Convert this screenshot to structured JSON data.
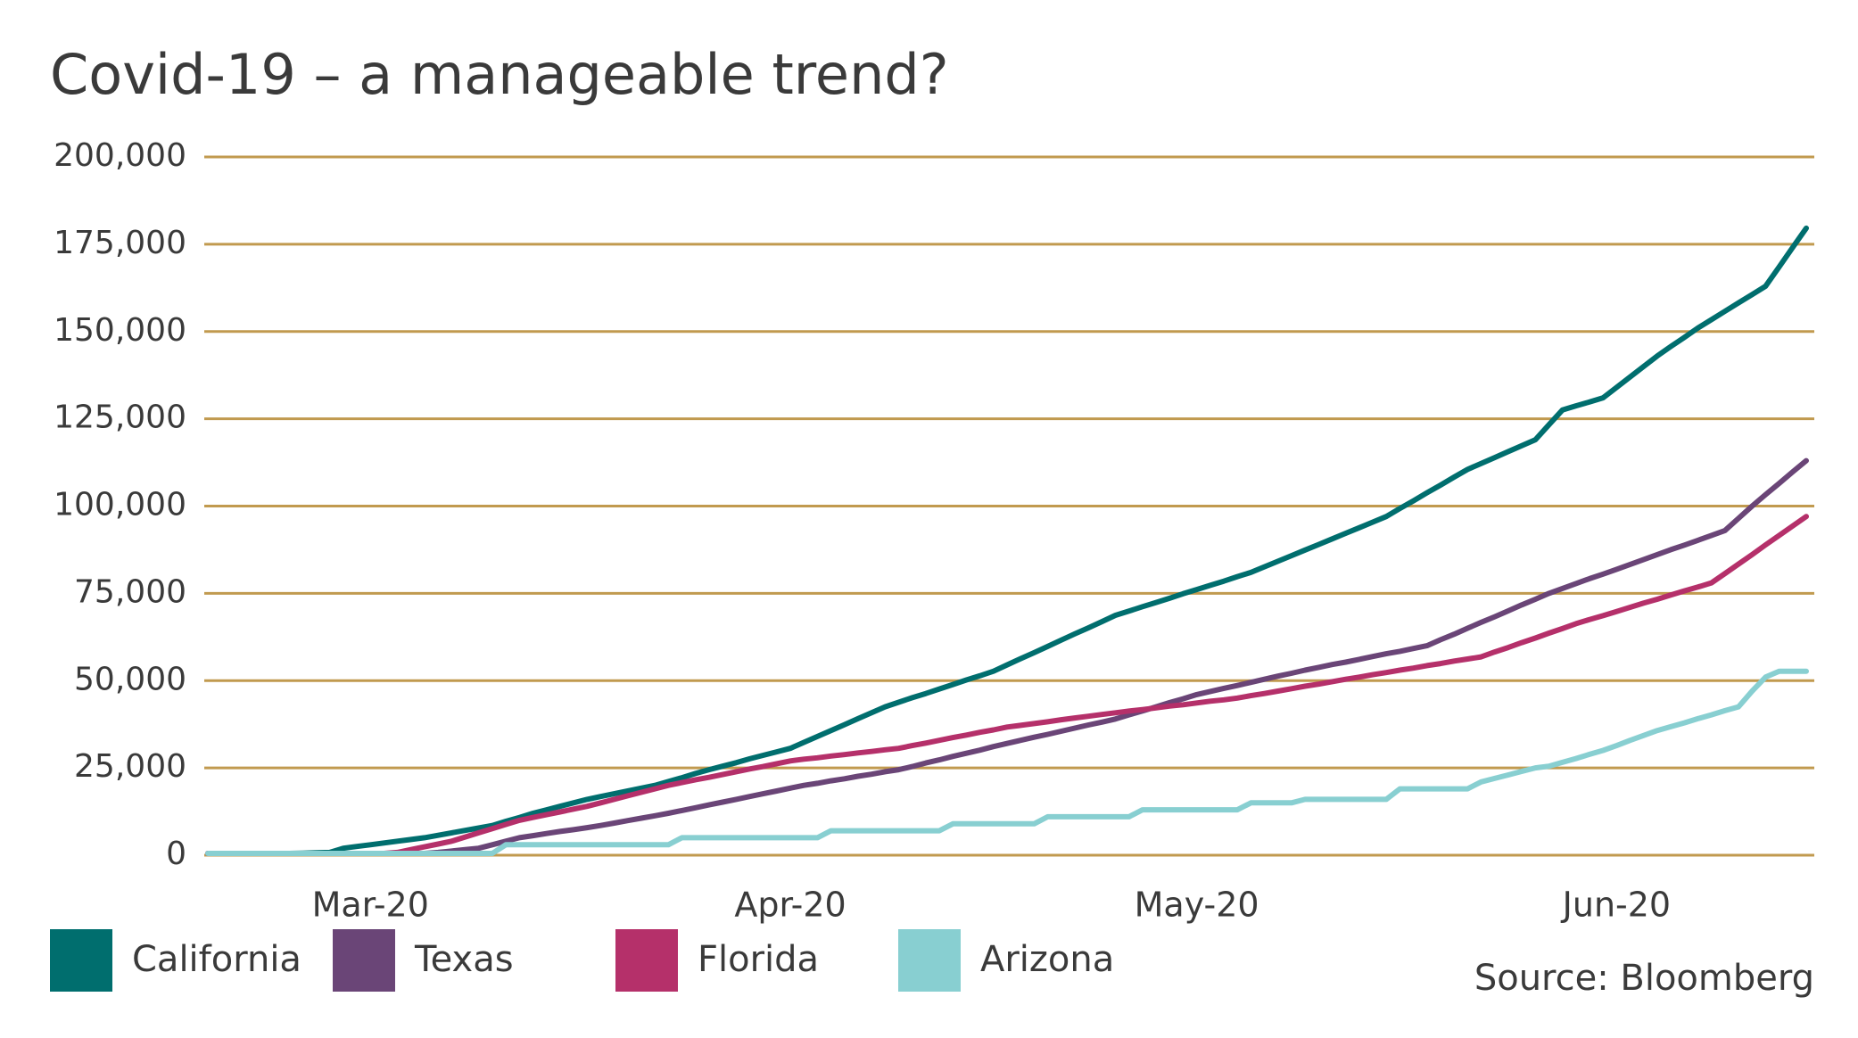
{
  "chart_data": {
    "type": "line",
    "title": "Covid-19 – a manageable trend?",
    "source": "Source: Bloomberg",
    "grid": true,
    "grid_color": "#c19a4f",
    "legend": "bottom-left",
    "ylim": [
      0,
      200000
    ],
    "yticks": [
      0,
      {
        "value": 25000,
        "label": "25,000"
      },
      {
        "value": 50000,
        "label": "50,000"
      },
      {
        "value": 75000,
        "label": "75,000"
      },
      {
        "value": 100000,
        "label": "100,000"
      },
      {
        "value": 125000,
        "label": "125,000"
      },
      {
        "value": 150000,
        "label": "150,000"
      },
      {
        "value": 175000,
        "label": "175,000"
      },
      {
        "value": 200000,
        "label": "200,000"
      }
    ],
    "categories": [
      null,
      null,
      null,
      null,
      null,
      null,
      null,
      null,
      null,
      null,
      null,
      null,
      "Mar-20",
      null,
      null,
      null,
      null,
      null,
      null,
      null,
      null,
      null,
      null,
      null,
      null,
      null,
      null,
      null,
      null,
      null,
      null,
      null,
      null,
      null,
      null,
      null,
      null,
      null,
      null,
      null,
      null,
      null,
      null,
      "Apr-20",
      null,
      null,
      null,
      null,
      null,
      null,
      null,
      null,
      null,
      null,
      null,
      null,
      null,
      null,
      null,
      null,
      null,
      null,
      null,
      null,
      null,
      null,
      null,
      null,
      null,
      null,
      null,
      null,
      null,
      "May-20",
      null,
      null,
      null,
      null,
      null,
      null,
      null,
      null,
      null,
      null,
      null,
      null,
      null,
      null,
      null,
      null,
      null,
      null,
      null,
      null,
      null,
      null,
      null,
      null,
      null,
      null,
      null,
      null,
      null,
      null,
      "Jun-20",
      null,
      null,
      null,
      null,
      null,
      null,
      null,
      null,
      null,
      null,
      null,
      null,
      null,
      null
    ],
    "series": [
      {
        "name": "California",
        "color": "#006e6e",
        "values": [
          500,
          500,
          500,
          500,
          500,
          500,
          500,
          600,
          700,
          800,
          2000,
          2500,
          3000,
          3500,
          4000,
          4500,
          5000,
          5700,
          6400,
          7100,
          7800,
          8500,
          9700,
          10800,
          12000,
          13000,
          14000,
          15000,
          16000,
          16800,
          17600,
          18400,
          19200,
          20000,
          21100,
          22200,
          23400,
          24500,
          25500,
          26500,
          27600,
          28600,
          29600,
          30600,
          32300,
          34000,
          35700,
          37400,
          39100,
          40800,
          42500,
          43800,
          45100,
          46300,
          47600,
          48900,
          50200,
          51400,
          52700,
          54500,
          56300,
          58000,
          59800,
          61600,
          63400,
          65100,
          66900,
          68700,
          69900,
          71200,
          72400,
          73600,
          74900,
          76100,
          77300,
          78500,
          79800,
          81000,
          82600,
          84200,
          85800,
          87400,
          89000,
          90600,
          92200,
          93800,
          95400,
          97000,
          99300,
          101500,
          103800,
          106000,
          108300,
          110500,
          112200,
          113900,
          115600,
          117300,
          119000,
          123300,
          127500,
          128700,
          129800,
          131000,
          134000,
          137000,
          140000,
          143000,
          145700,
          148300,
          151000,
          153400,
          155800,
          158200,
          160600,
          163000,
          168500,
          174100,
          179600
        ]
      },
      {
        "name": "Texas",
        "color": "#6a4577",
        "values": [
          500,
          500,
          500,
          500,
          500,
          500,
          500,
          500,
          500,
          500,
          500,
          500,
          500,
          500,
          500,
          500,
          500,
          800,
          1200,
          1600,
          2000,
          3000,
          4000,
          5000,
          5600,
          6200,
          6800,
          7300,
          7900,
          8500,
          9200,
          9900,
          10600,
          11300,
          12000,
          12800,
          13600,
          14400,
          15200,
          16000,
          16800,
          17600,
          18400,
          19200,
          20000,
          20600,
          21300,
          21900,
          22600,
          23200,
          23900,
          24500,
          25400,
          26400,
          27300,
          28300,
          29200,
          30100,
          31100,
          32000,
          32900,
          33800,
          34600,
          35500,
          36400,
          37300,
          38100,
          39000,
          40200,
          41300,
          42500,
          43700,
          44800,
          46000,
          46900,
          47800,
          48600,
          49500,
          50400,
          51300,
          52100,
          53000,
          53800,
          54600,
          55300,
          56100,
          56900,
          57700,
          58400,
          59200,
          60000,
          61700,
          63300,
          65000,
          66700,
          68300,
          70000,
          71700,
          73300,
          75000,
          76400,
          77800,
          79200,
          80500,
          81900,
          83300,
          84700,
          86100,
          87500,
          88800,
          90200,
          91600,
          93000,
          96500,
          100000,
          103300,
          106500,
          109800,
          113000
        ]
      },
      {
        "name": "Florida",
        "color": "#b5306a",
        "values": [
          500,
          500,
          500,
          500,
          500,
          500,
          500,
          500,
          500,
          500,
          500,
          500,
          500,
          500,
          800,
          1600,
          2400,
          3200,
          4000,
          5200,
          6400,
          7600,
          8800,
          10000,
          10800,
          11600,
          12400,
          13200,
          14000,
          15000,
          16000,
          17000,
          18000,
          19000,
          20000,
          20800,
          21600,
          22300,
          23100,
          23900,
          24700,
          25400,
          26200,
          27000,
          27500,
          27900,
          28400,
          28800,
          29300,
          29700,
          30200,
          30600,
          31400,
          32100,
          32900,
          33700,
          34400,
          35200,
          35900,
          36700,
          37200,
          37700,
          38200,
          38800,
          39300,
          39800,
          40300,
          40800,
          41300,
          41700,
          42200,
          42700,
          43100,
          43600,
          44100,
          44500,
          45000,
          45700,
          46300,
          47000,
          47700,
          48400,
          49000,
          49700,
          50400,
          51000,
          51700,
          52300,
          53000,
          53600,
          54300,
          54900,
          55600,
          56200,
          56800,
          58200,
          59500,
          60900,
          62200,
          63600,
          64900,
          66300,
          67500,
          68600,
          69800,
          71000,
          72200,
          73300,
          74500,
          75700,
          76800,
          78000,
          80700,
          83400,
          86100,
          88900,
          91600,
          94300,
          97000
        ]
      },
      {
        "name": "Arizona",
        "color": "#88cfd1",
        "values": [
          500,
          500,
          500,
          500,
          500,
          500,
          500,
          500,
          500,
          500,
          500,
          500,
          500,
          500,
          500,
          500,
          500,
          500,
          500,
          500,
          500,
          500,
          3000,
          3000,
          3000,
          3000,
          3000,
          3000,
          3000,
          3000,
          3000,
          3000,
          3000,
          3000,
          3000,
          5000,
          5000,
          5000,
          5000,
          5000,
          5000,
          5000,
          5000,
          5000,
          5000,
          5000,
          7000,
          7000,
          7000,
          7000,
          7000,
          7000,
          7000,
          7000,
          7000,
          9000,
          9000,
          9000,
          9000,
          9000,
          9000,
          9000,
          11000,
          11000,
          11000,
          11000,
          11000,
          11000,
          11000,
          13000,
          13000,
          13000,
          13000,
          13000,
          13000,
          13000,
          13000,
          15000,
          15000,
          15000,
          15000,
          16000,
          16000,
          16000,
          16000,
          16000,
          16000,
          16000,
          19000,
          19000,
          19000,
          19000,
          19000,
          19000,
          21000,
          22000,
          23000,
          24000,
          25000,
          25500,
          26600,
          27700,
          28900,
          30000,
          31400,
          32900,
          34300,
          35700,
          36800,
          37900,
          39100,
          40200,
          41400,
          42500,
          47000,
          51000,
          52700,
          52700,
          52700
        ]
      }
    ]
  }
}
